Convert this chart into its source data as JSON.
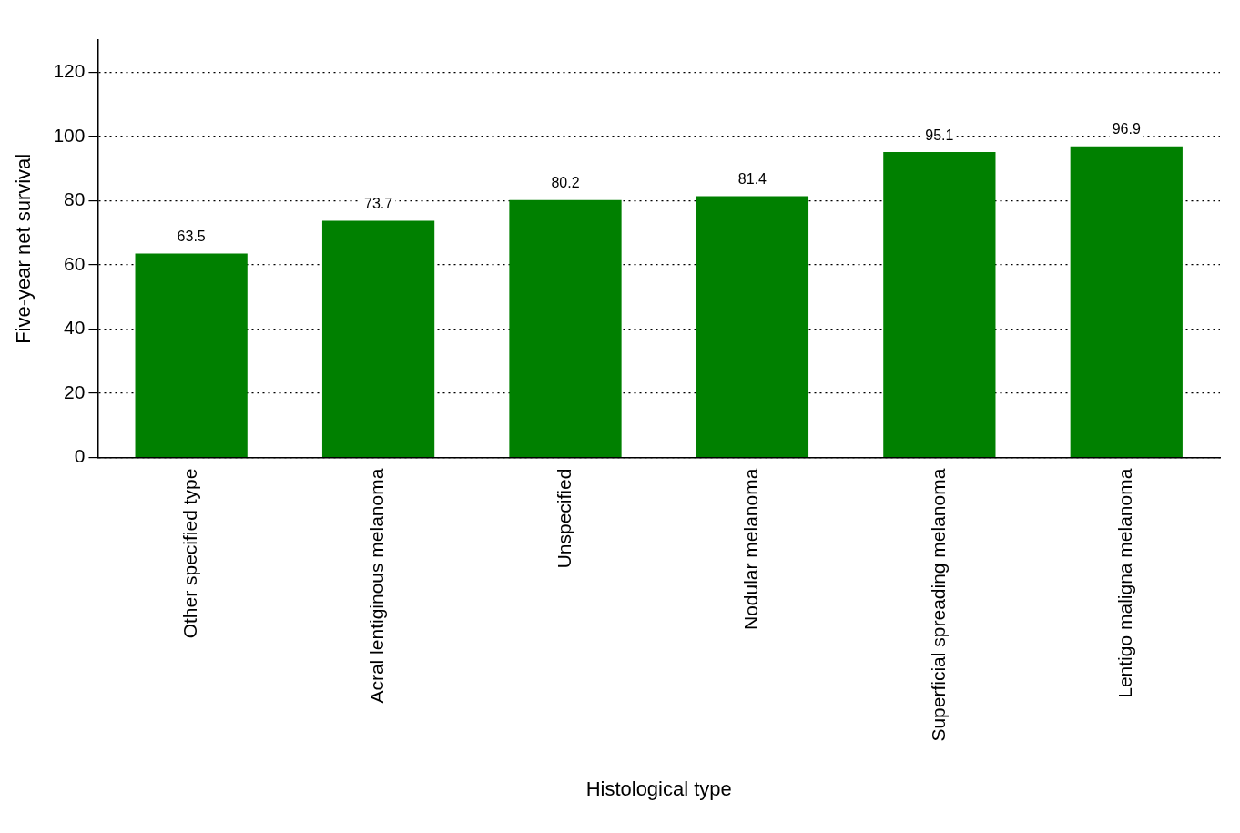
{
  "chart_data": {
    "type": "bar",
    "xlabel": "Histological type",
    "ylabel": "Five-year net survival",
    "categories": [
      "Other specified type",
      "Acral lentiginous melanoma",
      "Unspecified",
      "Nodular melanoma",
      "Superficial spreading melanoma",
      "Lentigo maligna melanoma"
    ],
    "values": [
      63.5,
      73.7,
      80.2,
      81.4,
      95.1,
      96.9
    ],
    "color": "#008000",
    "ylim": [
      0,
      130
    ],
    "yticks": [
      0,
      20,
      40,
      60,
      80,
      100,
      120
    ],
    "grid": "y",
    "legend": false,
    "data_labels": true
  }
}
